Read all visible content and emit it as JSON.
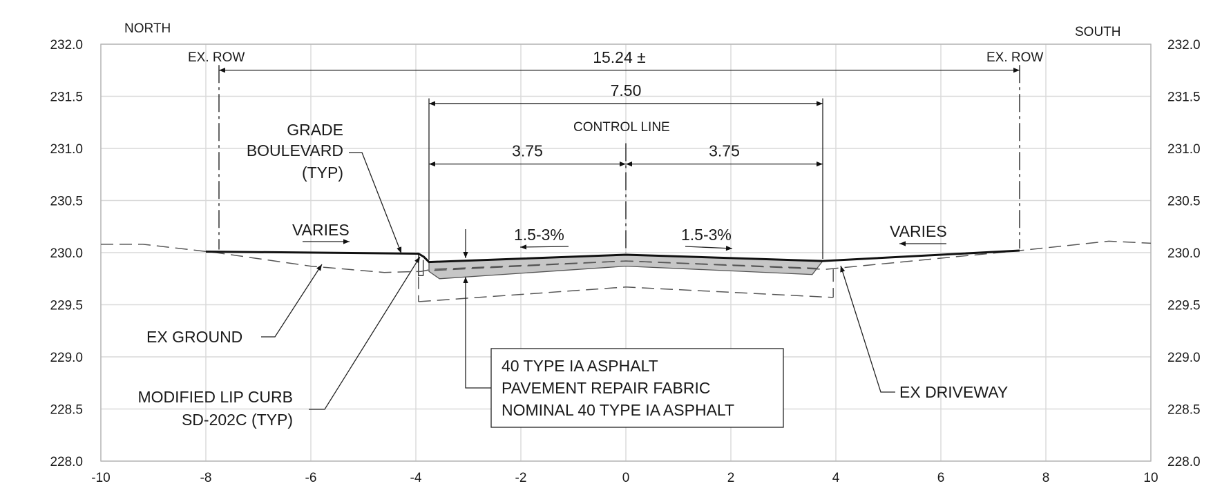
{
  "chart_data": {
    "type": "cross-section",
    "xlim": [
      -10,
      10
    ],
    "ylim": [
      228.0,
      232.0
    ],
    "x_ticks": [
      "-10",
      "-8",
      "-6",
      "-4",
      "-2",
      "0",
      "2",
      "4",
      "6",
      "8",
      "10"
    ],
    "y_ticks": [
      "232.0",
      "231.5",
      "231.0",
      "230.5",
      "230.0",
      "229.5",
      "229.0",
      "228.5",
      "228.0"
    ],
    "direction_left": "NORTH",
    "direction_right": "SOUTH",
    "dimensions": [
      {
        "label": "15.24 ±",
        "from": -7.75,
        "to": 7.5,
        "elev": 231.75
      },
      {
        "label": "7.50",
        "from": -3.75,
        "to": 3.75,
        "elev": 231.43
      },
      {
        "label": "3.75",
        "from": -3.75,
        "to": 0,
        "elev": 230.85
      },
      {
        "label": "3.75",
        "from": 0,
        "to": 3.75,
        "elev": 230.85
      }
    ],
    "annotations": {
      "ex_row_left": "EX. ROW",
      "ex_row_right": "EX. ROW",
      "control_line": "CONTROL LINE",
      "grade_boulevard": [
        "GRADE",
        "BOULEVARD",
        "(TYP)"
      ],
      "varies_left": "VARIES",
      "varies_right": "VARIES",
      "slope_left": "1.5-3%",
      "slope_right": "1.5-3%",
      "ex_ground": "EX GROUND",
      "curb": [
        "MODIFIED LIP CURB",
        "SD-202C (TYP)"
      ],
      "pavement": [
        "40 TYPE IA ASPHALT",
        "PAVEMENT REPAIR FABRIC",
        "NOMINAL 40 TYPE IA ASPHALT"
      ],
      "ex_driveway": "EX DRIVEWAY"
    },
    "finished_grade": [
      [
        -8.0,
        230.01
      ],
      [
        -3.95,
        229.99
      ],
      [
        -3.85,
        229.96
      ],
      [
        -3.75,
        229.91
      ],
      [
        0,
        229.98
      ],
      [
        3.75,
        229.92
      ],
      [
        7.5,
        230.02
      ]
    ],
    "existing_ground": [
      [
        -10,
        230.08
      ],
      [
        -9.2,
        230.08
      ],
      [
        -7.8,
        230.0
      ],
      [
        -6.0,
        229.87
      ],
      [
        -4.6,
        229.81
      ],
      [
        -3.9,
        229.82
      ],
      [
        -3.7,
        229.84
      ],
      [
        0,
        229.92
      ],
      [
        3.8,
        229.84
      ],
      [
        7.5,
        230.02
      ],
      [
        9.2,
        230.11
      ],
      [
        10,
        230.09
      ]
    ],
    "subgrade": [
      [
        -3.95,
        229.53
      ],
      [
        0,
        229.67
      ],
      [
        3.95,
        229.57
      ]
    ]
  }
}
